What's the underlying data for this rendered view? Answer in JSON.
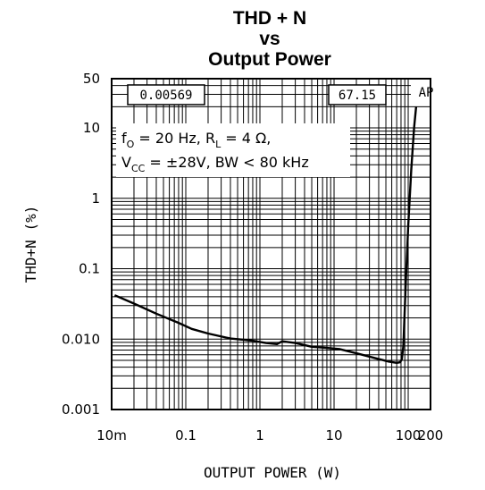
{
  "chart_data": {
    "type": "line",
    "title": [
      "THD + N",
      "vs",
      "Output Power"
    ],
    "xlabel": "OUTPUT POWER (W)",
    "ylabel": "THD+N (%)",
    "x_scale": "log",
    "y_scale": "log",
    "xlim": [
      0.01,
      200
    ],
    "ylim": [
      0.001,
      50
    ],
    "x_ticks": [
      0.01,
      0.1,
      1,
      10,
      100,
      200
    ],
    "x_tick_labels": [
      "10m",
      "0.1",
      "1",
      "10",
      "100",
      "200"
    ],
    "y_ticks": [
      50,
      10,
      1,
      0.1,
      0.01,
      0.001
    ],
    "y_tick_labels": [
      "50",
      "10",
      "1",
      "0.1",
      "0.010",
      "0.001"
    ],
    "grid": true,
    "series": [
      {
        "x": [
          0.011,
          0.02,
          0.04,
          0.08,
          0.12,
          0.2,
          0.4,
          0.8,
          1.2,
          1.7,
          2.0,
          3.0,
          5.0,
          8.0,
          12,
          20,
          35,
          55,
          70,
          78,
          82,
          86,
          92,
          100,
          110,
          120,
          128
        ],
        "y": [
          0.042,
          0.032,
          0.023,
          0.017,
          0.014,
          0.012,
          0.0102,
          0.0095,
          0.0088,
          0.0085,
          0.0093,
          0.0088,
          0.0078,
          0.0075,
          0.0072,
          0.0063,
          0.0054,
          0.0048,
          0.0046,
          0.0047,
          0.0052,
          0.008,
          0.05,
          0.4,
          2.5,
          10,
          20
        ]
      }
    ],
    "readouts": {
      "left": "0.00569",
      "right": "67.15",
      "tag": "AP"
    },
    "conditions": {
      "line1_f": "f",
      "line1_f_sub": "O",
      "line1_eq1": " = 20 Hz, R",
      "line1_r_sub": "L",
      "line1_eq2": " = 4 Ω,",
      "line2_v": "V",
      "line2_v_sub": "CC",
      "line2_rest": " = ±28V, BW < 80 kHz"
    }
  }
}
